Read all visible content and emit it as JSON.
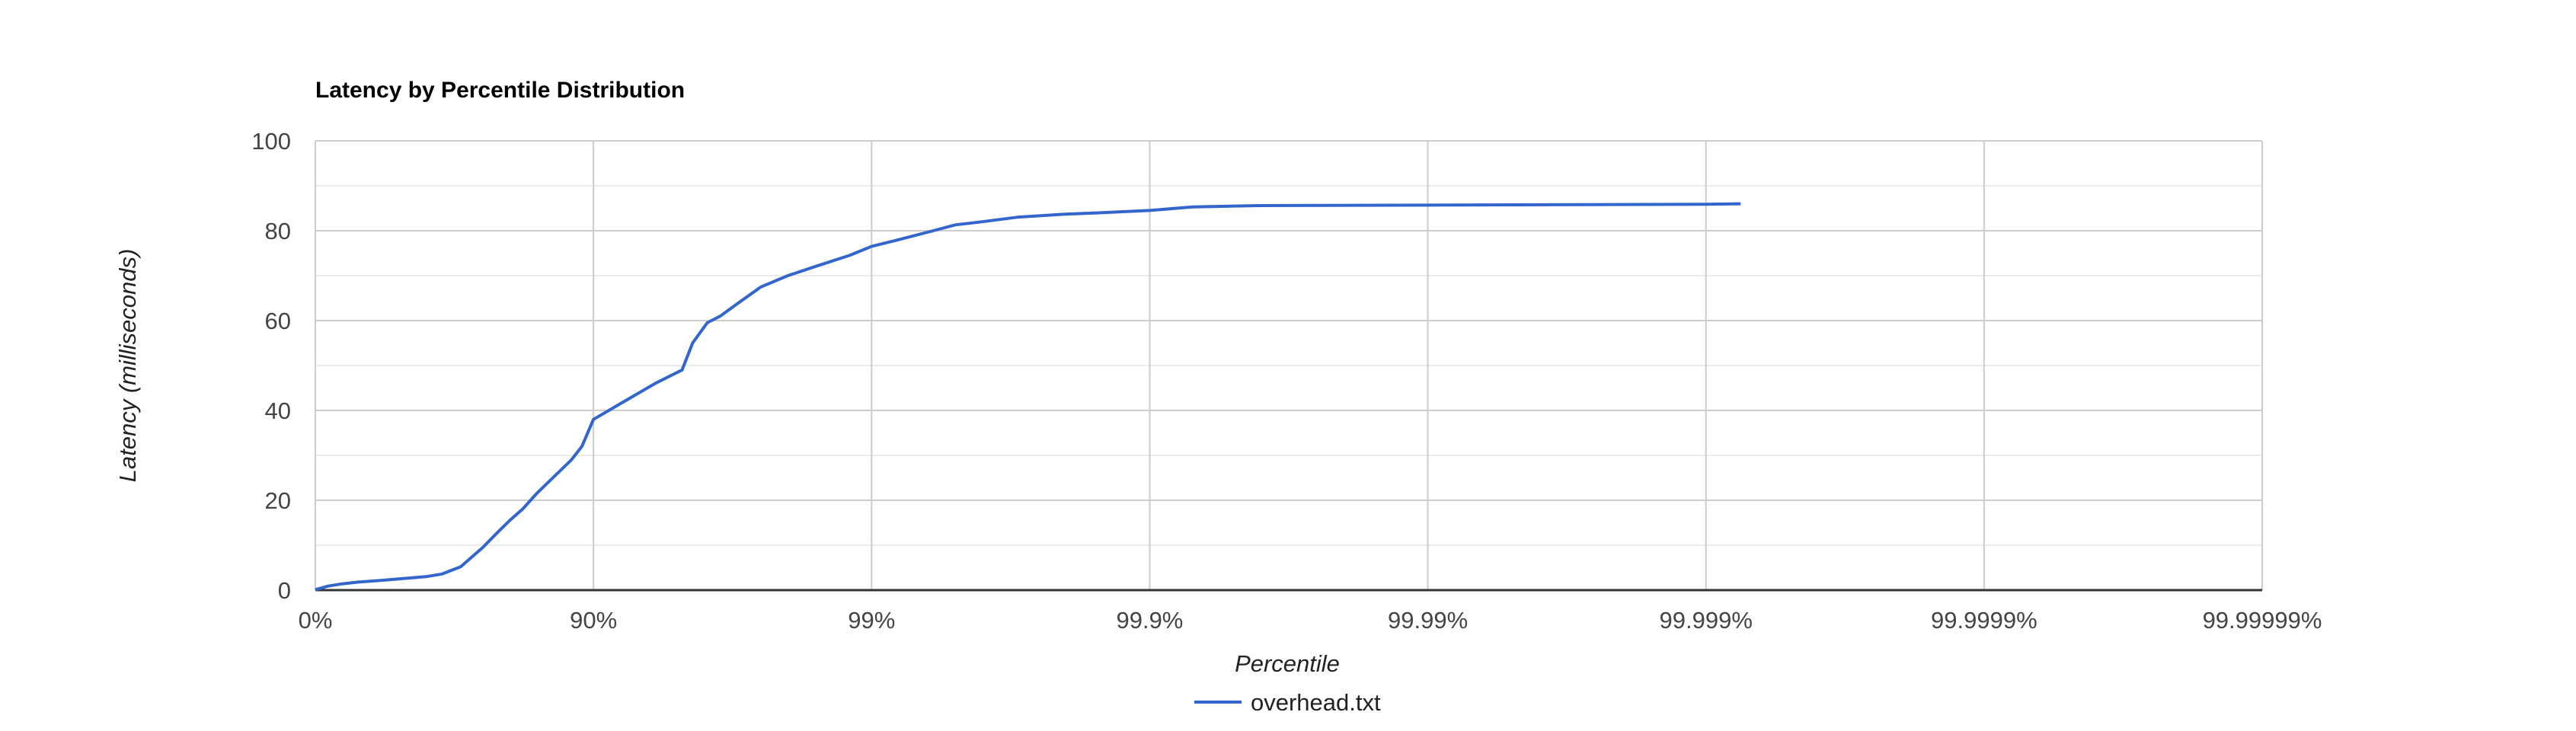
{
  "chart_data": {
    "type": "line",
    "title": "Latency by Percentile Distribution",
    "xlabel": "Percentile",
    "ylabel": "Latency (milliseconds)",
    "x_scale": "percentile-log",
    "x_tick_labels": [
      "0%",
      "90%",
      "99%",
      "99.9%",
      "99.99%",
      "99.999%",
      "99.9999%",
      "99.99999%"
    ],
    "y_ticks": [
      0,
      20,
      40,
      60,
      80,
      100
    ],
    "ylim": [
      0,
      100
    ],
    "xlim_percentile": [
      0,
      99.99999
    ],
    "grid": true,
    "legend_position": "bottom",
    "series": [
      {
        "name": "overhead.txt",
        "color": "#3366cc",
        "points": [
          [
            0,
            0.1
          ],
          [
            10,
            0.9
          ],
          [
            20,
            1.4
          ],
          [
            30,
            1.8
          ],
          [
            40,
            2.1
          ],
          [
            50,
            2.5
          ],
          [
            60,
            3.0
          ],
          [
            65,
            3.6
          ],
          [
            70,
            5.2
          ],
          [
            75,
            9.5
          ],
          [
            78,
            13.0
          ],
          [
            80,
            15.5
          ],
          [
            82,
            18.0
          ],
          [
            84,
            21.5
          ],
          [
            86,
            25.0
          ],
          [
            88,
            29.0
          ],
          [
            89,
            32.0
          ],
          [
            90,
            38.0
          ],
          [
            92,
            41.5
          ],
          [
            94,
            46.0
          ],
          [
            95.2,
            49.0
          ],
          [
            95.6,
            55.0
          ],
          [
            96.1,
            59.5
          ],
          [
            96.5,
            61.0
          ],
          [
            97,
            64.0
          ],
          [
            97.5,
            67.5
          ],
          [
            98,
            70.0
          ],
          [
            98.4,
            72.0
          ],
          [
            98.8,
            74.5
          ],
          [
            99,
            76.5
          ],
          [
            99.2,
            78.0
          ],
          [
            99.4,
            80.0
          ],
          [
            99.5,
            81.3
          ],
          [
            99.6,
            82.0
          ],
          [
            99.7,
            83.0
          ],
          [
            99.8,
            83.7
          ],
          [
            99.85,
            84.0
          ],
          [
            99.9,
            84.5
          ],
          [
            99.93,
            85.3
          ],
          [
            99.96,
            85.6
          ],
          [
            99.99,
            85.7
          ],
          [
            99.999,
            85.9
          ],
          [
            99.99925,
            86.0
          ]
        ]
      }
    ]
  }
}
